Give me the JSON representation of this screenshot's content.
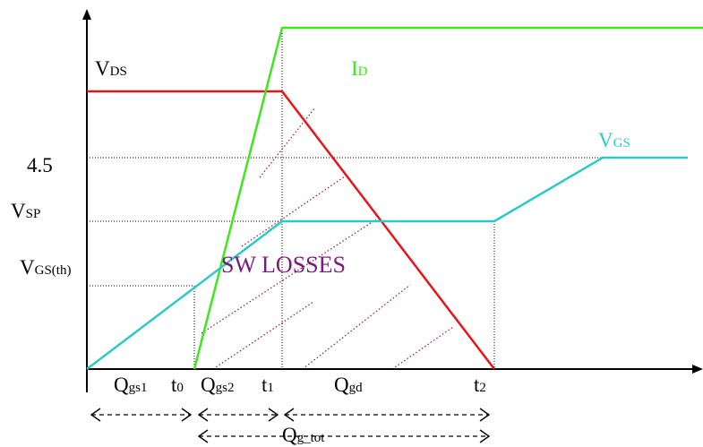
{
  "labels": {
    "vds": {
      "main": "V",
      "sub": "DS"
    },
    "id": {
      "main": "I",
      "sub": "D"
    },
    "vgs": {
      "main": "V",
      "sub": "GS"
    },
    "level_45": "4.5",
    "vsp": {
      "main": "V",
      "sub": "SP"
    },
    "vgsth": {
      "main": "V",
      "sub": "GS(th)"
    },
    "sw_losses": "SW LOSSES",
    "qgs1": {
      "main": "Q",
      "sub": "gs1"
    },
    "t0": {
      "main": "t",
      "sub": "0"
    },
    "qgs2": {
      "main": "Q",
      "sub": "gs2"
    },
    "t1": {
      "main": "t",
      "sub": "1"
    },
    "qgd": {
      "main": "Q",
      "sub": "gd"
    },
    "t2": {
      "main": "t",
      "sub": "2"
    },
    "qgtot": {
      "main": "Q",
      "sub": "g_tot"
    }
  }
}
